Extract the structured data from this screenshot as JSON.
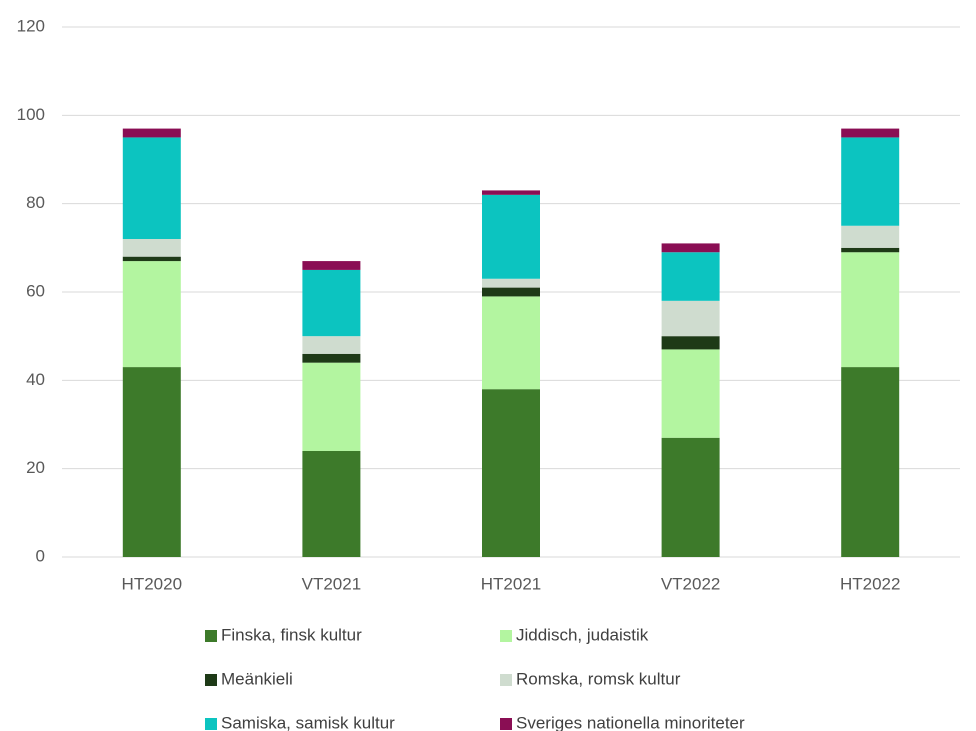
{
  "chart_data": {
    "type": "stacked_bar",
    "categories": [
      "HT2020",
      "VT2021",
      "HT2021",
      "VT2022",
      "HT2022"
    ],
    "series": [
      {
        "name": "Finska, finsk kultur",
        "color": "#3d7a2a",
        "values": [
          43,
          24,
          38,
          27,
          43
        ]
      },
      {
        "name": "Jiddisch, judaistik",
        "color": "#b3f5a0",
        "values": [
          24,
          20,
          21,
          20,
          26
        ]
      },
      {
        "name": "Meänkieli",
        "color": "#1e3a17",
        "values": [
          1,
          2,
          2,
          3,
          1
        ]
      },
      {
        "name": "Romska, romsk kultur",
        "color": "#cfdccf",
        "values": [
          4,
          4,
          2,
          8,
          5
        ]
      },
      {
        "name": "Samiska, samisk kultur",
        "color": "#0cc4c0",
        "values": [
          23,
          15,
          19,
          11,
          20
        ]
      },
      {
        "name": "Sveriges nationella minoriteter",
        "color": "#8a0e54",
        "values": [
          2,
          2,
          1,
          2,
          2
        ]
      }
    ],
    "ylim": [
      0,
      120
    ],
    "yticks": [
      0,
      20,
      40,
      60,
      80,
      100,
      120
    ],
    "grid": true,
    "legend": "bottom"
  }
}
